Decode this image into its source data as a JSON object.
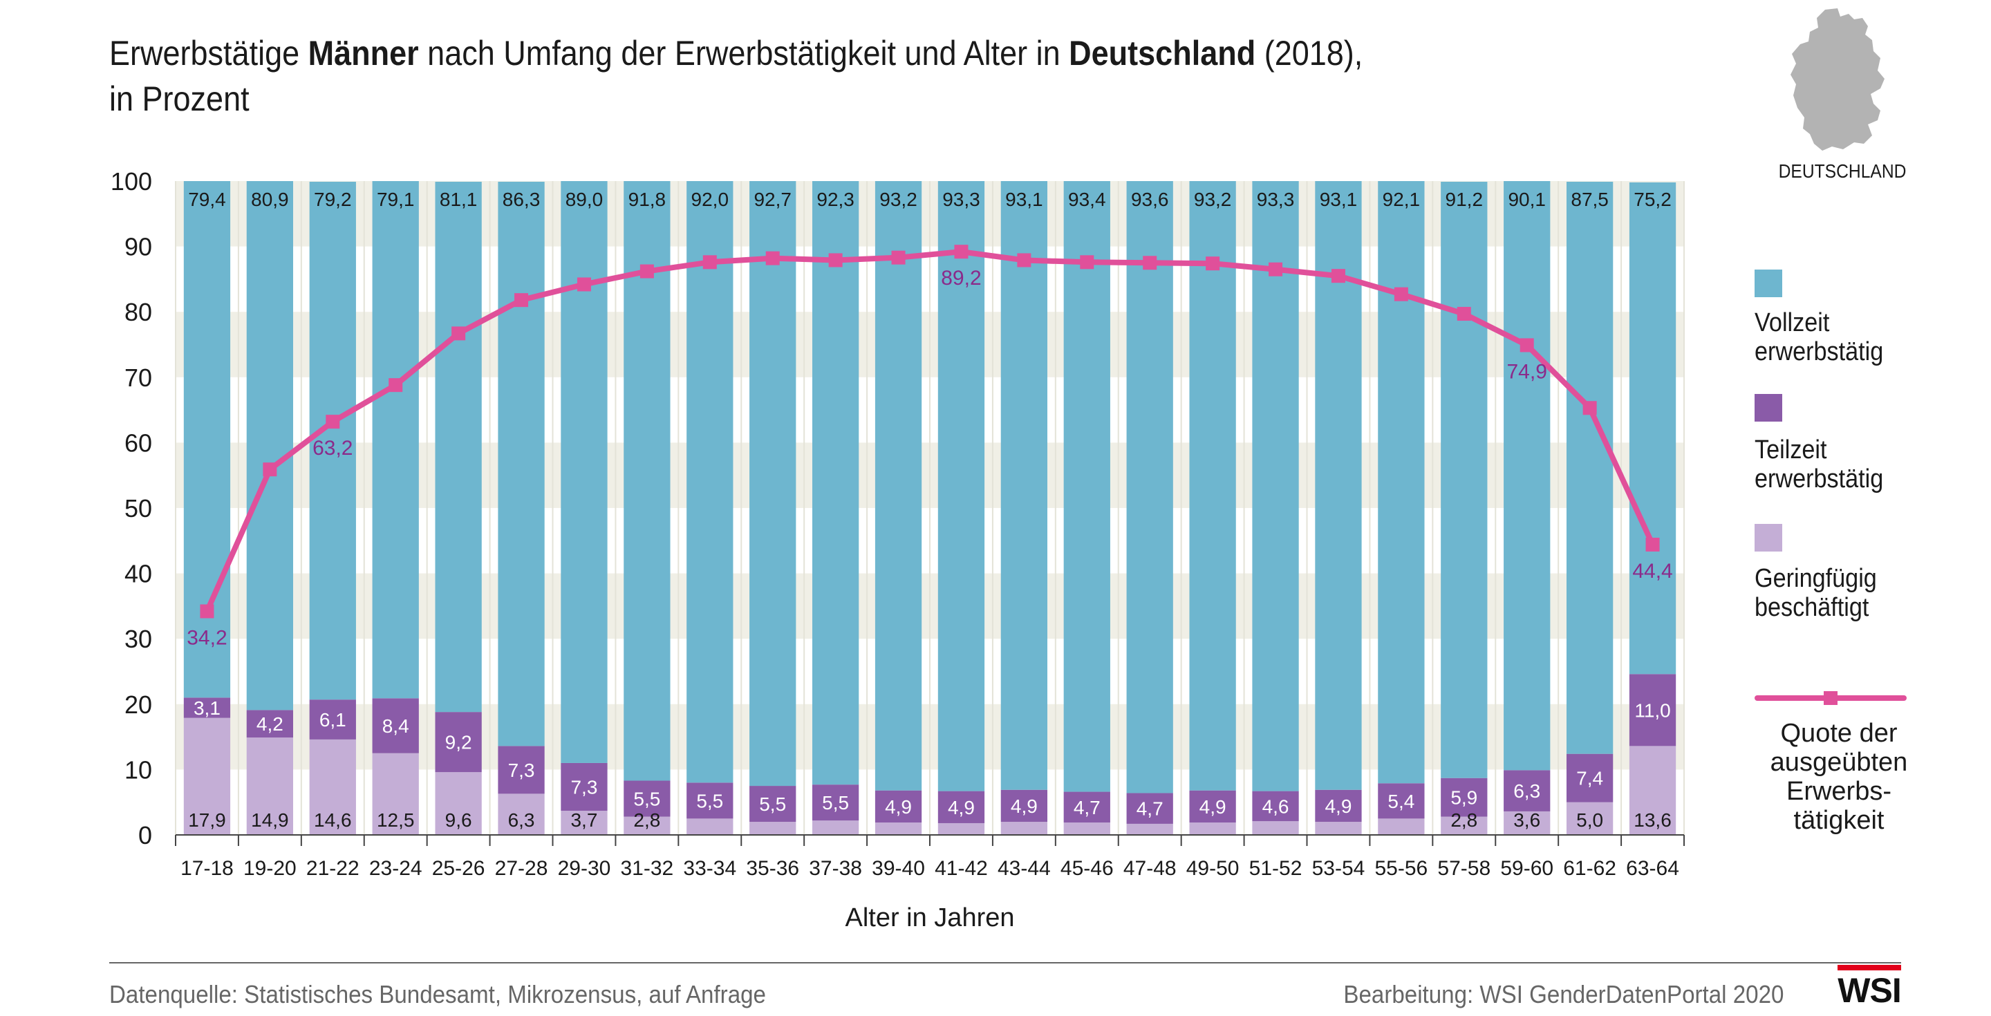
{
  "header": {
    "title_line1_a": "Erwerbstätige ",
    "title_line1_b": "Männer",
    "title_line1_c": " nach Umfang der Erwerbstätigkeit und Alter in ",
    "title_line1_d": "Deutschland",
    "title_line1_e": " (2018),",
    "title_line2": "in Prozent",
    "map_label": "DEUTSCHLAND"
  },
  "legend": {
    "vollzeit": "Vollzeit erwerbstätig",
    "teilzeit": "Teilzeit erwerbstätig",
    "geringfuegig": "Geringfügig beschäftigt",
    "quote": "Quote der ausgeübten Erwerbs-tätigkeit",
    "vollzeit_l1": "Vollzeit",
    "vollzeit_l2": "erwerbstätig",
    "teilzeit_l1": "Teilzeit",
    "teilzeit_l2": "erwerbstätig",
    "geringfuegig_l1": "Geringfügig",
    "geringfuegig_l2": "beschäftigt",
    "quote_l1": "Quote der",
    "quote_l2": "ausgeübten",
    "quote_l3": "Erwerbs-",
    "quote_l4": "tätigkeit"
  },
  "footer": {
    "source": "Datenquelle: Statistisches Bundesamt, Mikrozensus, auf Anfrage",
    "credit": "Bearbeitung: WSI GenderDatenPortal 2020",
    "logo": "WSI"
  },
  "colors": {
    "vollzeit": "#6eb6cf",
    "teilzeit": "#8a5ba8",
    "geringfuegig": "#c4aed6",
    "quote": "#e0509a",
    "quote_label": "#8b2a8a",
    "band": "#f0efe6"
  },
  "chart_data": {
    "type": "bar",
    "stacked": true,
    "xlabel": "Alter in Jahren",
    "ylabel": "",
    "ylim": [
      0,
      100
    ],
    "yticks": [
      0,
      10,
      20,
      30,
      40,
      50,
      60,
      70,
      80,
      90,
      100
    ],
    "categories": [
      "17-18",
      "19-20",
      "21-22",
      "23-24",
      "25-26",
      "27-28",
      "29-30",
      "31-32",
      "33-34",
      "35-36",
      "37-38",
      "39-40",
      "41-42",
      "43-44",
      "45-46",
      "47-48",
      "49-50",
      "51-52",
      "53-54",
      "55-56",
      "57-58",
      "59-60",
      "61-62",
      "63-64"
    ],
    "series": [
      {
        "name": "Geringfügig beschäftigt",
        "values": [
          17.9,
          14.9,
          14.6,
          12.5,
          9.6,
          6.3,
          3.7,
          2.8,
          2.5,
          2.0,
          2.2,
          1.9,
          1.8,
          2.0,
          1.9,
          1.7,
          1.9,
          2.1,
          2.0,
          2.5,
          2.8,
          3.6,
          5.0,
          13.6
        ],
        "labels": [
          "17,9",
          "14,9",
          "14,6",
          "12,5",
          "9,6",
          "6,3",
          "3,7",
          "2,8",
          "",
          "",
          "",
          "",
          "",
          "",
          "",
          "",
          "",
          "",
          "",
          "",
          "2,8",
          "3,6",
          "5,0",
          "13,6"
        ]
      },
      {
        "name": "Teilzeit erwerbstätig",
        "values": [
          3.1,
          4.2,
          6.1,
          8.4,
          9.2,
          7.3,
          7.3,
          5.5,
          5.5,
          5.5,
          5.5,
          4.9,
          4.9,
          4.9,
          4.7,
          4.7,
          4.9,
          4.6,
          4.9,
          5.4,
          5.9,
          6.3,
          7.4,
          11.0
        ],
        "labels": [
          "3,1",
          "4,2",
          "6,1",
          "8,4",
          "9,2",
          "7,3",
          "7,3",
          "5,5",
          "5,5",
          "5,5",
          "5,5",
          "4,9",
          "4,9",
          "4,9",
          "4,7",
          "4,7",
          "4,9",
          "4,6",
          "4,9",
          "5,4",
          "5,9",
          "6,3",
          "7,4",
          "11,0"
        ]
      },
      {
        "name": "Vollzeit erwerbstätig",
        "values": [
          79.4,
          80.9,
          79.2,
          79.1,
          81.1,
          86.3,
          89.0,
          91.8,
          92.0,
          92.7,
          92.3,
          93.2,
          93.3,
          93.1,
          93.4,
          93.6,
          93.2,
          93.3,
          93.1,
          92.1,
          91.2,
          90.1,
          87.5,
          75.2
        ],
        "labels": [
          "79,4",
          "80,9",
          "79,2",
          "79,1",
          "81,1",
          "86,3",
          "89,0",
          "91,8",
          "92,0",
          "92,7",
          "92,3",
          "93,2",
          "93,3",
          "93,1",
          "93,4",
          "93,6",
          "93,2",
          "93,3",
          "93,1",
          "92,1",
          "91,2",
          "90,1",
          "87,5",
          "75,2"
        ]
      }
    ],
    "line": {
      "name": "Quote der ausgeübten Erwerbstätigkeit",
      "values": [
        34.2,
        55.9,
        63.2,
        68.8,
        76.7,
        81.8,
        84.2,
        86.2,
        87.6,
        88.2,
        87.9,
        88.3,
        89.2,
        87.9,
        87.6,
        87.5,
        87.4,
        86.5,
        85.5,
        82.7,
        79.7,
        74.9,
        65.3,
        44.4
      ],
      "labels": [
        "34,2",
        "",
        "63,2",
        "",
        "",
        "",
        "",
        "",
        "",
        "",
        "",
        "",
        "89,2",
        "",
        "",
        "",
        "",
        "",
        "",
        "",
        "",
        "74,9",
        "",
        "44,4"
      ]
    }
  }
}
